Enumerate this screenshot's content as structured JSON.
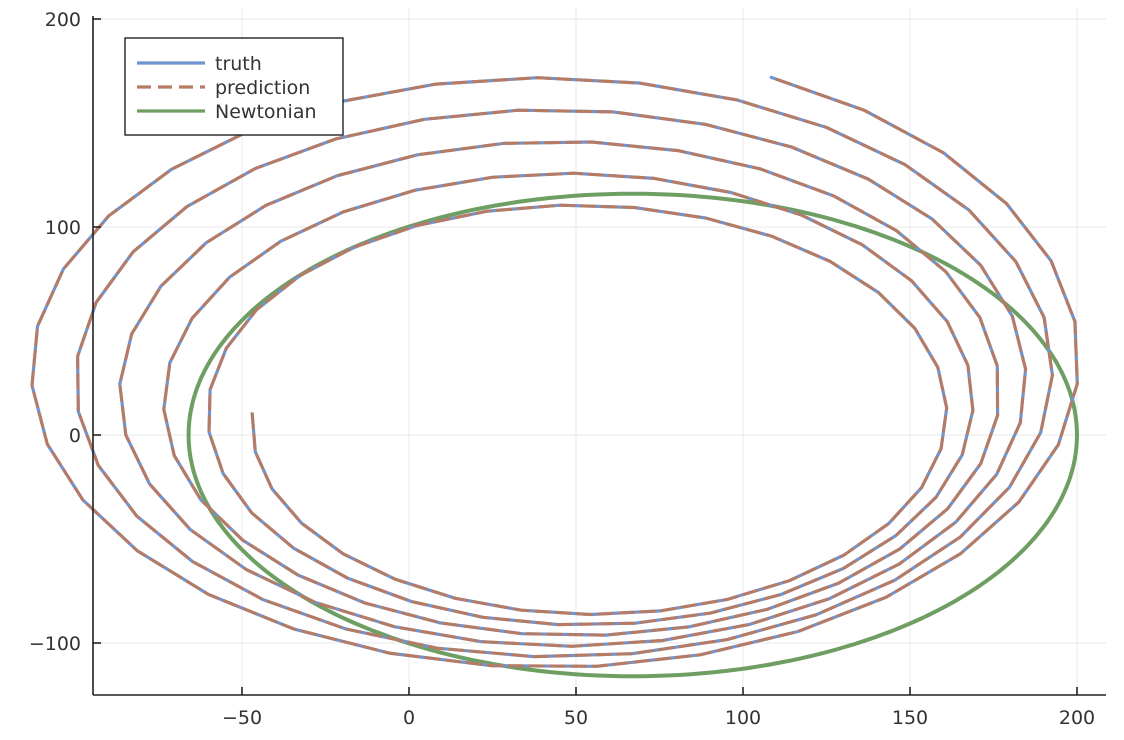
{
  "chart_data": {
    "type": "line",
    "xlim": [
      -95,
      210
    ],
    "ylim": [
      -125,
      200
    ],
    "x_ticks": [
      -50,
      0,
      50,
      100,
      150,
      200
    ],
    "y_ticks": [
      -100,
      0,
      100,
      200
    ],
    "x_tick_labels": [
      "−50",
      "0",
      "50",
      "100",
      "150",
      "200"
    ],
    "y_tick_labels": [
      "−100",
      "0",
      "100",
      "200"
    ],
    "grid": true,
    "legend_position": "top-left",
    "series": [
      {
        "name": "truth",
        "color": "#6f94cf",
        "dash": "solid",
        "model": "precessing-spiral",
        "angle_range_deg": [
          -182,
          1865
        ],
        "semi_major_axis_range": [
          102,
          162
        ],
        "semi_minor_axis_range": [
          92,
          150
        ],
        "center_x_range": [
          55,
          40
        ],
        "center_y_range": [
          7,
          36
        ]
      },
      {
        "name": "prediction",
        "color": "#b77b64",
        "dash": "dashed",
        "model": "precessing-spiral",
        "angle_range_deg": [
          -182,
          1865
        ],
        "semi_major_axis_range": [
          102,
          162
        ],
        "semi_minor_axis_range": [
          92,
          150
        ],
        "center_x_range": [
          55,
          40
        ],
        "center_y_range": [
          7,
          36
        ]
      },
      {
        "name": "Newtonian",
        "color": "#6e9e62",
        "dash": "solid",
        "model": "ellipse",
        "center": [
          67,
          0
        ],
        "semi_major_axis": 133,
        "semi_minor_axis": 116
      }
    ]
  }
}
